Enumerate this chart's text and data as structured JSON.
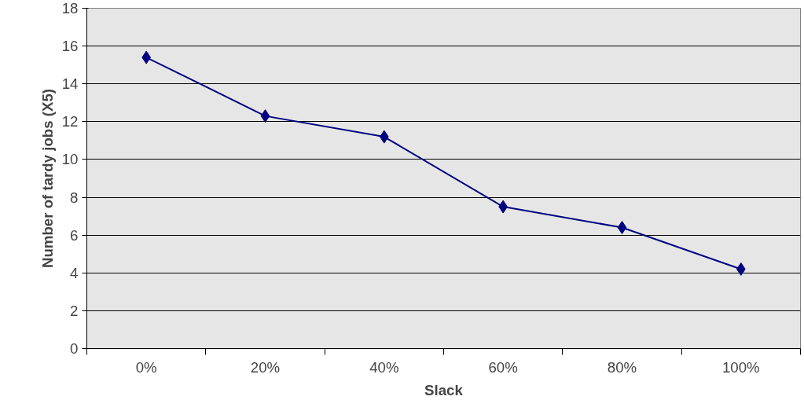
{
  "chart_data": {
    "type": "line",
    "xlabel": "Slack",
    "ylabel": "Number of tardy jobs (X5)",
    "categories": [
      "0%",
      "20%",
      "40%",
      "60%",
      "80%",
      "100%"
    ],
    "series": [
      {
        "color": "#000080",
        "values": [
          15.4,
          12.3,
          11.2,
          7.5,
          6.4,
          4.2
        ]
      }
    ],
    "ylim": [
      0,
      18
    ],
    "yticks": [
      0,
      2,
      4,
      6,
      8,
      10,
      12,
      14,
      16,
      18
    ],
    "grid": "y",
    "marker": "diamond",
    "line_style": "solid"
  }
}
